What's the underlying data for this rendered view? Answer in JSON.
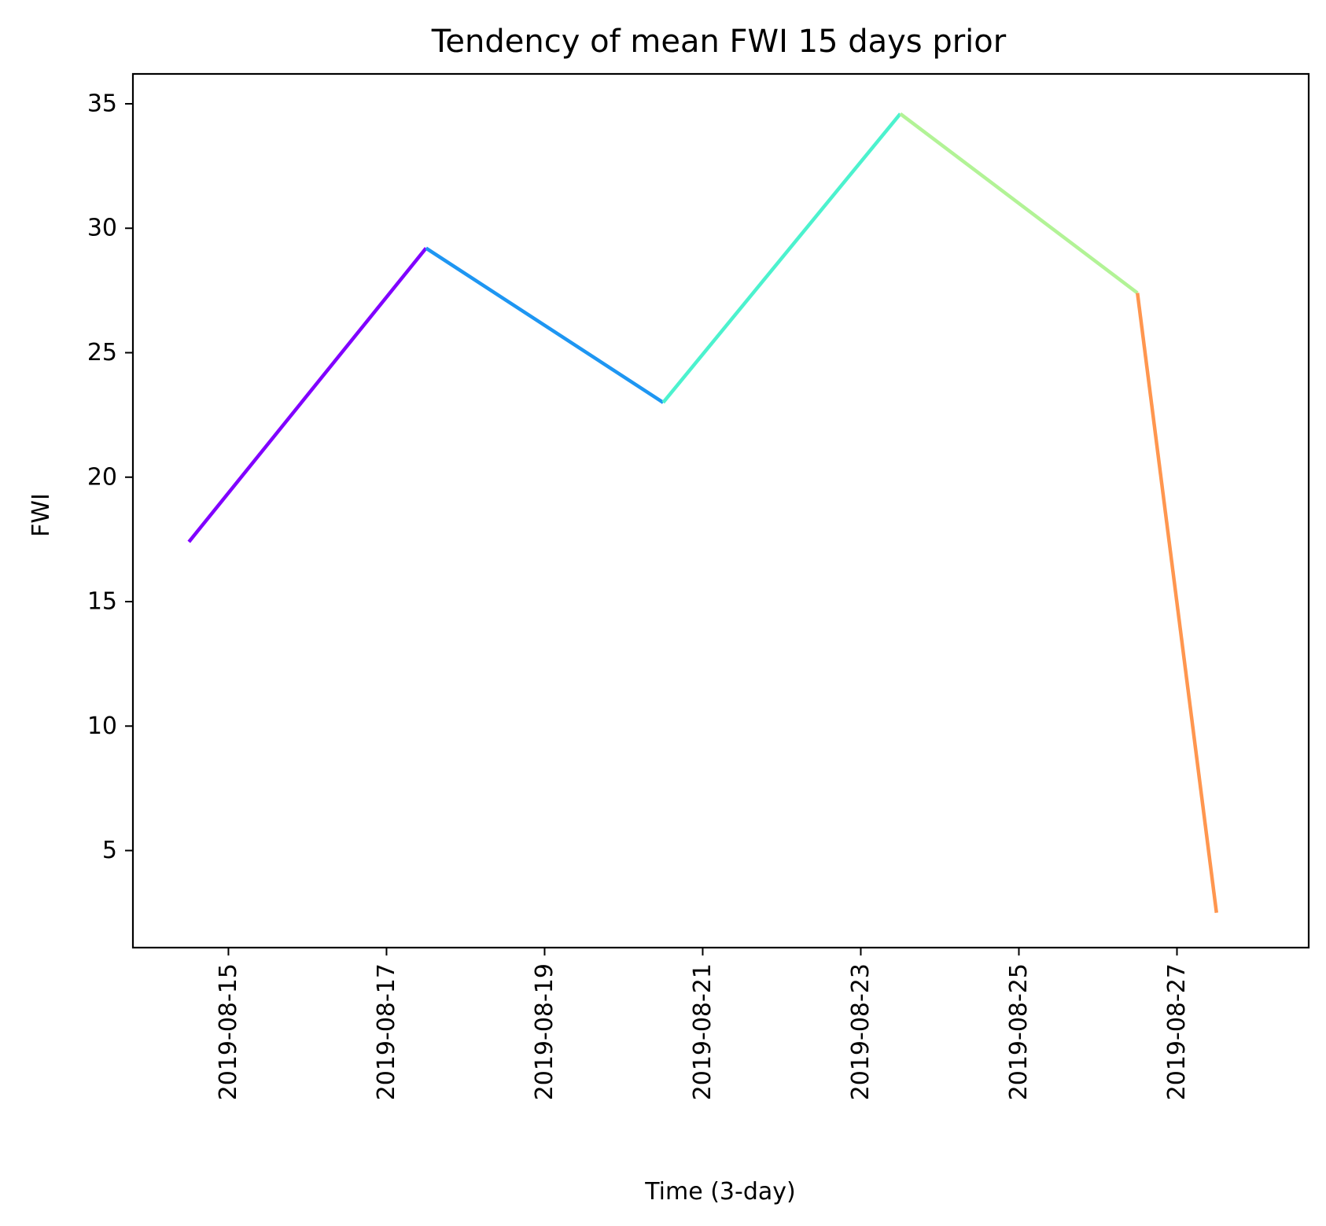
{
  "chart_data": {
    "type": "line",
    "title": "Tendency of mean FWI 15 days prior",
    "xlabel": "Time (3-day)",
    "ylabel": "FWI",
    "x_tick_labels": [
      "2019-08-15",
      "2019-08-17",
      "2019-08-19",
      "2019-08-21",
      "2019-08-23",
      "2019-08-25",
      "2019-08-27"
    ],
    "y_tick_labels": [
      "5",
      "10",
      "15",
      "20",
      "25",
      "30",
      "35"
    ],
    "y_ticks": [
      5,
      10,
      15,
      20,
      25,
      30,
      35
    ],
    "xlim": [
      "2019-08-13 19:00",
      "2019-08-28 16:00"
    ],
    "ylim": [
      1.1,
      36.2
    ],
    "grid": false,
    "legend": "none",
    "points": [
      {
        "x": "2019-08-14 12:00",
        "y": 17.4
      },
      {
        "x": "2019-08-17 12:00",
        "y": 29.2
      },
      {
        "x": "2019-08-20 12:00",
        "y": 23.0
      },
      {
        "x": "2019-08-23 12:00",
        "y": 34.6
      },
      {
        "x": "2019-08-26 12:00",
        "y": 27.4
      },
      {
        "x": "2019-08-27 12:00",
        "y": 2.5
      }
    ],
    "segment_colors": [
      "#8000ff",
      "#1e96f2",
      "#4cf2ce",
      "#b2f396",
      "#ff964f"
    ]
  }
}
